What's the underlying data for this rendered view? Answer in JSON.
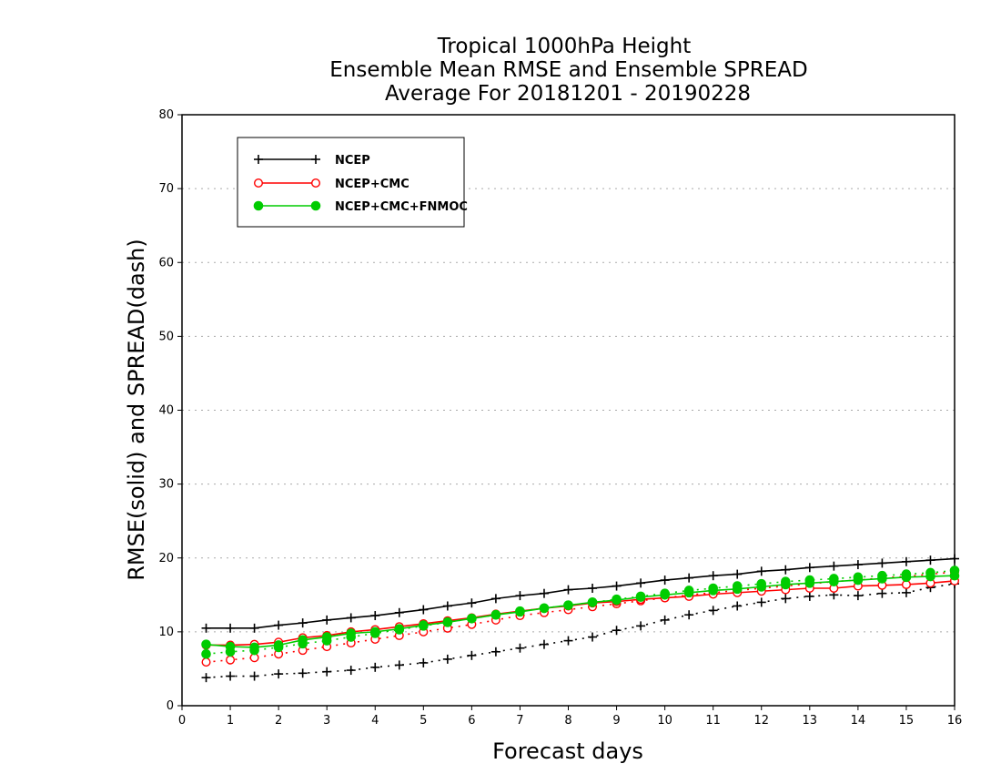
{
  "chart_data": {
    "type": "line",
    "title": [
      "Tropical 1000hPa Height",
      "Ensemble Mean RMSE and Ensemble SPREAD",
      "Average For 20181201 - 20190228"
    ],
    "xlabel": "Forecast days",
    "ylabel": "RMSE(solid) and SPREAD(dash)",
    "xlim": [
      0,
      16
    ],
    "ylim": [
      0,
      80
    ],
    "xticks": [
      0,
      1,
      2,
      3,
      4,
      5,
      6,
      7,
      8,
      9,
      10,
      11,
      12,
      13,
      14,
      15,
      16
    ],
    "yticks": [
      0,
      10,
      20,
      30,
      40,
      50,
      60,
      70,
      80
    ],
    "grid": "horizontal dotted",
    "legend_position": "top-left",
    "x": [
      0.5,
      1,
      1.5,
      2,
      2.5,
      3,
      3.5,
      4,
      4.5,
      5,
      5.5,
      6,
      6.5,
      7,
      7.5,
      8,
      8.5,
      9,
      9.5,
      10,
      10.5,
      11,
      11.5,
      12,
      12.5,
      13,
      13.5,
      14,
      14.5,
      15,
      15.5,
      16
    ],
    "series": [
      {
        "name": "NCEP",
        "color": "#000000",
        "marker": "plus",
        "rmse": [
          10.5,
          10.5,
          10.5,
          10.9,
          11.2,
          11.6,
          11.9,
          12.2,
          12.6,
          13.0,
          13.5,
          13.9,
          14.5,
          14.9,
          15.2,
          15.7,
          15.9,
          16.2,
          16.6,
          17.0,
          17.3,
          17.6,
          17.8,
          18.2,
          18.4,
          18.7,
          18.9,
          19.1,
          19.3,
          19.5,
          19.7,
          19.9
        ],
        "spread": [
          3.8,
          4.0,
          4.0,
          4.3,
          4.4,
          4.6,
          4.8,
          5.2,
          5.5,
          5.8,
          6.3,
          6.8,
          7.3,
          7.8,
          8.3,
          8.8,
          9.3,
          10.2,
          10.8,
          11.6,
          12.3,
          12.9,
          13.5,
          14.0,
          14.5,
          14.8,
          15.0,
          14.9,
          15.2,
          15.3,
          16.0,
          16.5
        ]
      },
      {
        "name": "NCEP+CMC",
        "color": "#ff0000",
        "marker": "open-circle",
        "rmse": [
          8.2,
          8.2,
          8.3,
          8.6,
          9.2,
          9.5,
          10.0,
          10.3,
          10.7,
          11.1,
          11.5,
          11.9,
          12.4,
          12.8,
          13.2,
          13.5,
          13.9,
          14.1,
          14.4,
          14.6,
          14.8,
          15.1,
          15.3,
          15.5,
          15.7,
          15.9,
          15.9,
          16.2,
          16.3,
          16.4,
          16.6,
          16.9
        ],
        "spread": [
          5.9,
          6.2,
          6.5,
          7.0,
          7.5,
          8.0,
          8.5,
          9.0,
          9.5,
          10.0,
          10.5,
          11.0,
          11.6,
          12.2,
          12.6,
          13.0,
          13.4,
          13.8,
          14.2,
          14.6,
          15.0,
          15.3,
          15.6,
          15.9,
          16.2,
          16.5,
          16.8,
          17.0,
          17.3,
          17.5,
          17.8,
          18.1
        ]
      },
      {
        "name": "NCEP+CMC+FNMOC",
        "color": "#00cc00",
        "marker": "filled-circle",
        "rmse": [
          8.3,
          8.0,
          7.9,
          8.2,
          8.9,
          9.3,
          9.8,
          10.0,
          10.4,
          10.9,
          11.3,
          11.8,
          12.3,
          12.7,
          13.2,
          13.6,
          14.0,
          14.3,
          14.7,
          15.0,
          15.3,
          15.6,
          15.8,
          16.1,
          16.4,
          16.6,
          16.8,
          17.0,
          17.2,
          17.4,
          17.5,
          17.6
        ],
        "spread": [
          7.0,
          7.3,
          7.5,
          7.9,
          8.4,
          8.8,
          9.3,
          9.8,
          10.3,
          10.8,
          11.3,
          11.8,
          12.3,
          12.8,
          13.2,
          13.6,
          14.0,
          14.4,
          14.8,
          15.2,
          15.6,
          15.9,
          16.2,
          16.5,
          16.8,
          17.0,
          17.2,
          17.4,
          17.6,
          17.8,
          18.0,
          18.3
        ]
      }
    ]
  }
}
